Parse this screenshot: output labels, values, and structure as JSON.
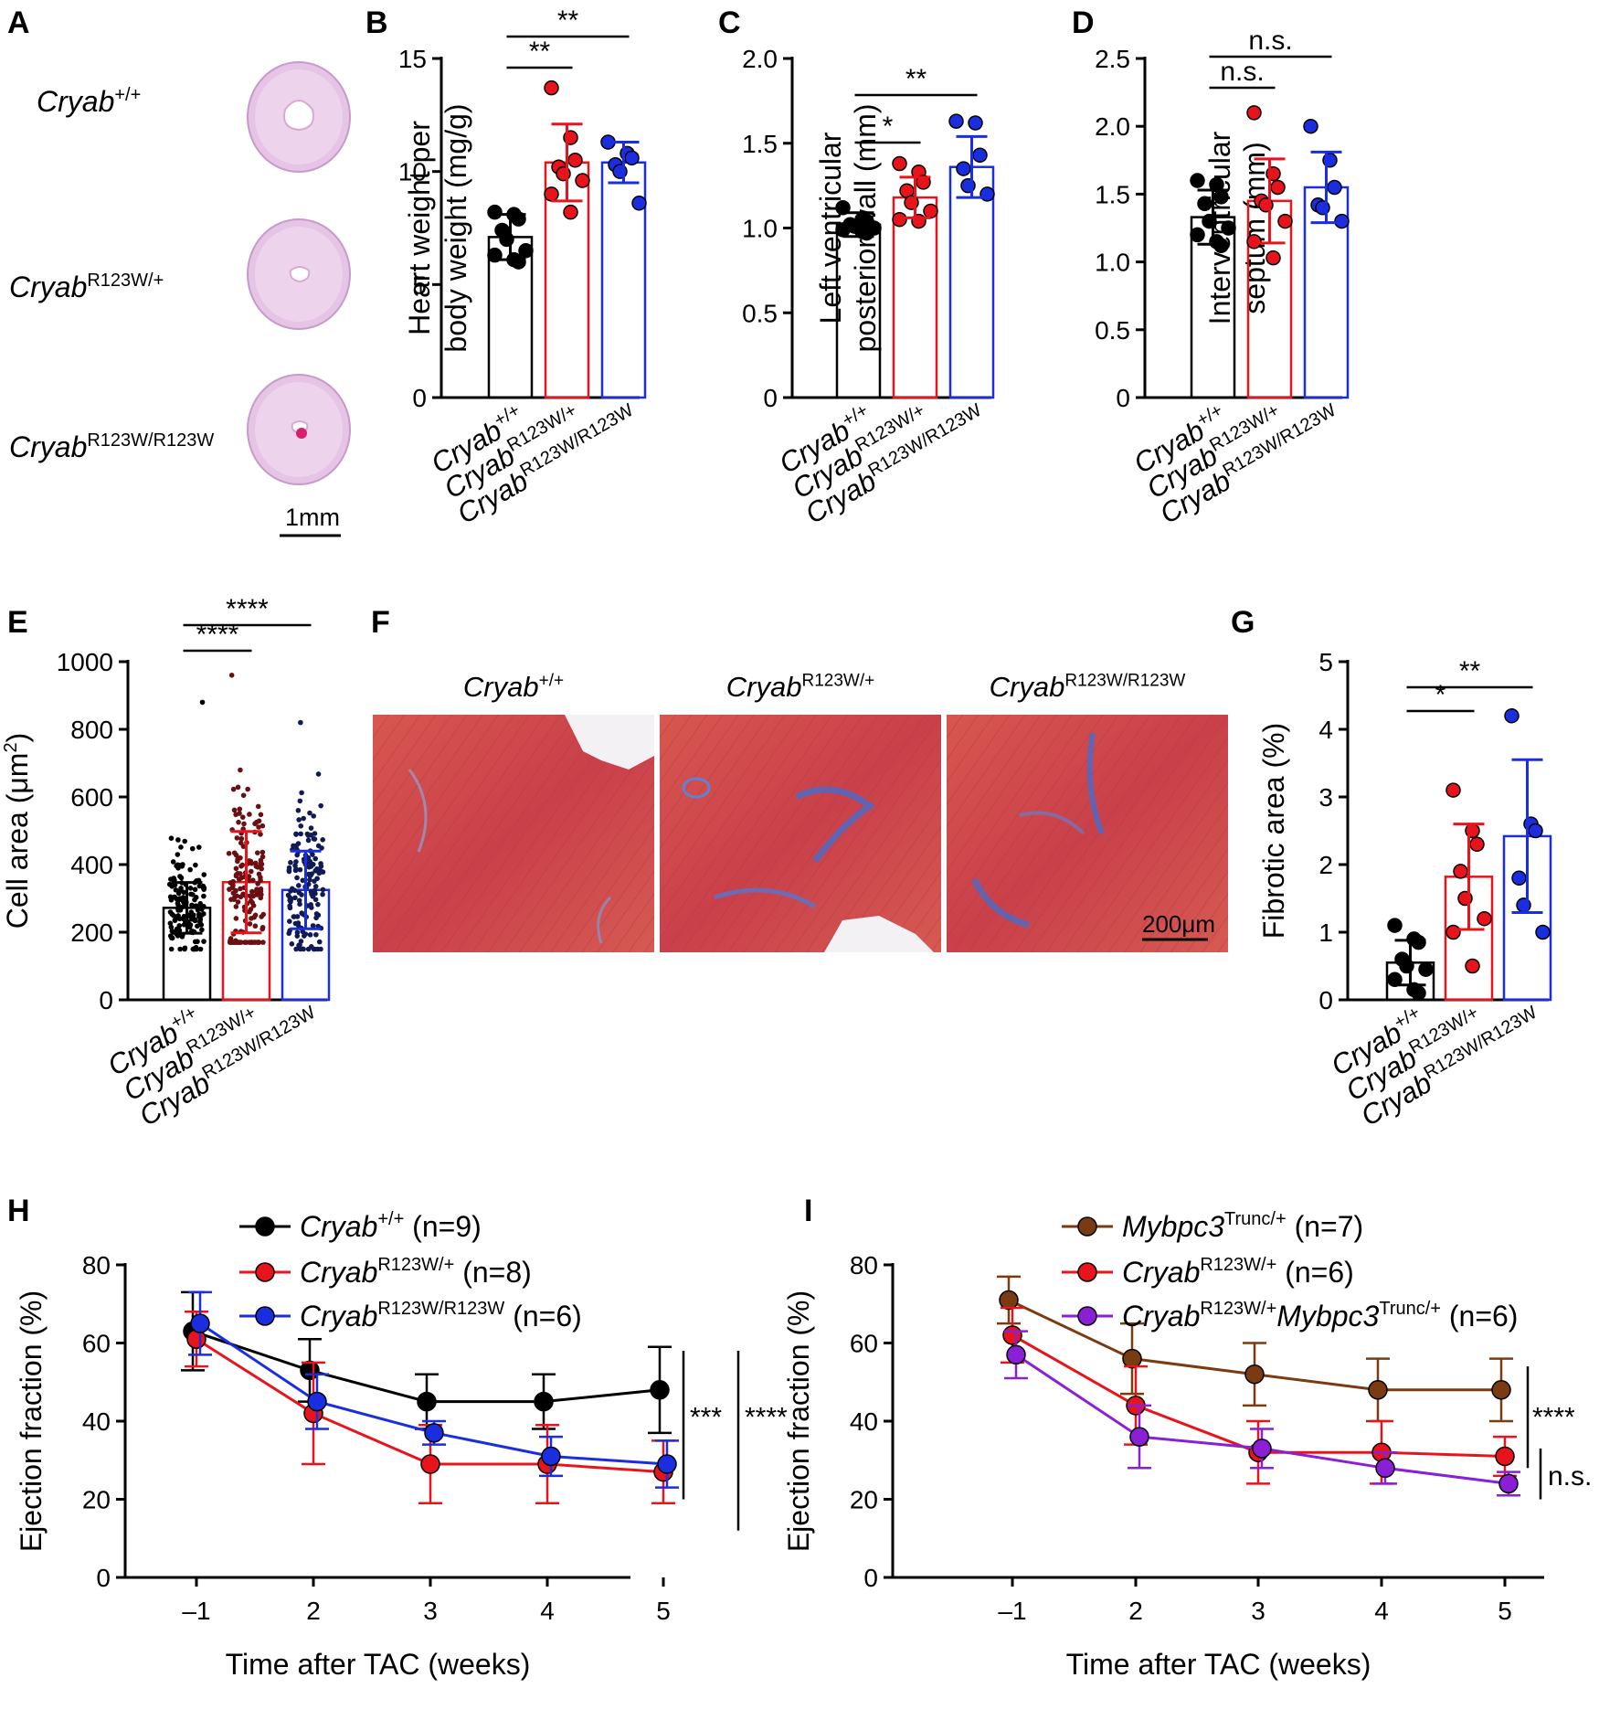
{
  "panels": {
    "A": {
      "letter": "A",
      "genotypes": [
        {
          "base": "Cryab",
          "sup": "+/+"
        },
        {
          "base": "Cryab",
          "sup": "R123W/+"
        },
        {
          "base": "Cryab",
          "sup": "R123W/R123W"
        }
      ],
      "scale_label": "1mm"
    },
    "F": {
      "letter": "F",
      "titles": [
        {
          "base": "Cryab",
          "sup": "+/+"
        },
        {
          "base": "Cryab",
          "sup": "R123W/+"
        },
        {
          "base": "Cryab",
          "sup": "R123W/R123W"
        }
      ],
      "scale_label": "200μm"
    }
  },
  "colors": {
    "wt": "#000000",
    "het": "#e8141c",
    "hom": "#1a2ee0",
    "mybpc3": "#7a3b12",
    "double": "#8b1fd6"
  },
  "chart_data": [
    {
      "id": "B",
      "letter": "B",
      "type": "bar",
      "ylabel_lines": [
        "Heart weight per",
        "body weight (mg/g)"
      ],
      "ylim": [
        0,
        15
      ],
      "yticks": [
        0,
        5,
        10,
        15
      ],
      "categories": [
        {
          "base": "Cryab",
          "sup": "+/+"
        },
        {
          "base": "Cryab",
          "sup": "R123W/+"
        },
        {
          "base": "Cryab",
          "sup": "R123W/R123W"
        }
      ],
      "means": [
        7.1,
        10.4,
        10.4
      ],
      "sd": [
        1.0,
        1.7,
        0.9
      ],
      "points": [
        [
          8.2,
          8.1,
          7.9,
          7.4,
          7.0,
          6.5,
          6.3,
          6.1,
          6.0
        ],
        [
          13.7,
          11.5,
          10.5,
          10.2,
          9.9,
          9.6,
          9.0,
          8.2
        ],
        [
          11.3,
          10.8,
          10.6,
          10.3,
          10.0,
          8.6
        ]
      ],
      "significance": [
        {
          "from": 0,
          "to": 1,
          "label": "**"
        },
        {
          "from": 0,
          "to": 2,
          "label": "**"
        }
      ]
    },
    {
      "id": "C",
      "letter": "C",
      "type": "bar",
      "ylabel_lines": [
        "Left ventricular",
        "posterior wall (mm)"
      ],
      "ylim": [
        0,
        2.0
      ],
      "yticks": [
        0,
        0.5,
        1.0,
        1.5,
        2.0
      ],
      "ytick_labels": [
        "0",
        "0.5",
        "1.0",
        "1.5",
        "2.0"
      ],
      "categories": [
        {
          "base": "Cryab",
          "sup": "+/+"
        },
        {
          "base": "Cryab",
          "sup": "R123W/+"
        },
        {
          "base": "Cryab",
          "sup": "R123W/R123W"
        }
      ],
      "means": [
        1.02,
        1.18,
        1.36
      ],
      "sd": [
        0.07,
        0.12,
        0.18
      ],
      "points": [
        [
          1.12,
          1.05,
          1.04,
          1.02,
          1.01,
          1.0,
          0.99,
          0.98,
          0.97
        ],
        [
          1.38,
          1.33,
          1.27,
          1.22,
          1.15,
          1.1,
          1.05,
          1.04
        ],
        [
          1.63,
          1.62,
          1.43,
          1.35,
          1.25,
          1.2
        ]
      ],
      "significance": [
        {
          "from": 0,
          "to": 1,
          "label": "*"
        },
        {
          "from": 0,
          "to": 2,
          "label": "**"
        }
      ]
    },
    {
      "id": "D",
      "letter": "D",
      "type": "bar",
      "ylabel_lines": [
        "Interventricular",
        "septum (mm)"
      ],
      "ylim": [
        0,
        2.5
      ],
      "yticks": [
        0,
        0.5,
        1.0,
        1.5,
        2.0,
        2.5
      ],
      "ytick_labels": [
        "0",
        "0.5",
        "1.0",
        "1.5",
        "2.0",
        "2.5"
      ],
      "categories": [
        {
          "base": "Cryab",
          "sup": "+/+"
        },
        {
          "base": "Cryab",
          "sup": "R123W/+"
        },
        {
          "base": "Cryab",
          "sup": "R123W/R123W"
        }
      ],
      "means": [
        1.33,
        1.45,
        1.55
      ],
      "sd": [
        0.2,
        0.31,
        0.26
      ],
      "points": [
        [
          1.6,
          1.57,
          1.48,
          1.43,
          1.3,
          1.25,
          1.2,
          1.15,
          1.12
        ],
        [
          2.1,
          1.65,
          1.55,
          1.45,
          1.42,
          1.3,
          1.15,
          1.03
        ],
        [
          2.0,
          1.75,
          1.55,
          1.42,
          1.4,
          1.3
        ]
      ],
      "significance": [
        {
          "from": 0,
          "to": 1,
          "label": "n.s."
        },
        {
          "from": 0,
          "to": 2,
          "label": "n.s."
        }
      ]
    },
    {
      "id": "E",
      "letter": "E",
      "type": "bar",
      "ylabel_lines": [
        "Cell area (μm²)"
      ],
      "ylim": [
        0,
        1000
      ],
      "yticks": [
        0,
        200,
        400,
        600,
        800,
        1000
      ],
      "categories": [
        {
          "base": "Cryab",
          "sup": "+/+"
        },
        {
          "base": "Cryab",
          "sup": "R123W/+"
        },
        {
          "base": "Cryab",
          "sup": "R123W/R123W"
        }
      ],
      "means": [
        272,
        348,
        325
      ],
      "sd": [
        75,
        150,
        115
      ],
      "dense_points": {
        "n": 150,
        "min": [
          150,
          170,
          150
        ],
        "max": [
          880,
          960,
          820
        ],
        "sd": [
          80,
          150,
          110
        ]
      },
      "significance": [
        {
          "from": 0,
          "to": 1,
          "label": "****"
        },
        {
          "from": 0,
          "to": 2,
          "label": "****"
        }
      ]
    },
    {
      "id": "G",
      "letter": "G",
      "type": "bar",
      "ylabel_lines": [
        "Fibrotic area (%)"
      ],
      "ylim": [
        0,
        5
      ],
      "yticks": [
        0,
        1,
        2,
        3,
        4,
        5
      ],
      "categories": [
        {
          "base": "Cryab",
          "sup": "+/+"
        },
        {
          "base": "Cryab",
          "sup": "R123W/+"
        },
        {
          "base": "Cryab",
          "sup": "R123W/R123W"
        }
      ],
      "means": [
        0.55,
        1.82,
        2.42
      ],
      "sd": [
        0.33,
        0.78,
        1.13
      ],
      "points": [
        [
          1.1,
          0.9,
          0.85,
          0.6,
          0.5,
          0.45,
          0.3,
          0.15,
          0.1
        ],
        [
          3.1,
          2.5,
          2.3,
          1.9,
          1.5,
          1.2,
          1.0,
          0.5
        ],
        [
          4.2,
          2.6,
          2.5,
          1.8,
          1.4,
          1.0
        ]
      ],
      "significance": [
        {
          "from": 0,
          "to": 1,
          "label": "*"
        },
        {
          "from": 0,
          "to": 2,
          "label": "**"
        }
      ]
    },
    {
      "id": "H",
      "letter": "H",
      "type": "line",
      "xlabel": "Time after TAC (weeks)",
      "ylabel": "Ejection fraction (%)",
      "x": [
        "–1",
        "2",
        "3",
        "4",
        "5"
      ],
      "ylim": [
        0,
        80
      ],
      "yticks": [
        0,
        20,
        40,
        60,
        80
      ],
      "series": [
        {
          "base": "Cryab",
          "sup": "+/+",
          "n": "(n=9)",
          "color": "#000000",
          "values": [
            63,
            53,
            45,
            45,
            48
          ],
          "sd": [
            10,
            8,
            7,
            7,
            11
          ]
        },
        {
          "base": "Cryab",
          "sup": "R123W/+",
          "n": "(n=8)",
          "color": "#e8141c",
          "values": [
            61,
            42,
            29,
            29,
            27
          ],
          "sd": [
            7,
            13,
            10,
            10,
            8
          ]
        },
        {
          "base": "Cryab",
          "sup": "R123W/R123W",
          "n": "(n=6)",
          "color": "#1a2ee0",
          "values": [
            65,
            45,
            37,
            31,
            29
          ],
          "sd": [
            8,
            7,
            3,
            5,
            6
          ]
        }
      ],
      "significance": [
        {
          "label": "***"
        },
        {
          "label": "****"
        }
      ]
    },
    {
      "id": "I",
      "letter": "I",
      "type": "line",
      "xlabel": "Time after TAC (weeks)",
      "ylabel": "Ejection fraction (%)",
      "x": [
        "–1",
        "2",
        "3",
        "4",
        "5"
      ],
      "ylim": [
        0,
        80
      ],
      "yticks": [
        0,
        20,
        40,
        60,
        80
      ],
      "series": [
        {
          "parts": [
            {
              "t": "Mybpc3",
              "i": true
            },
            {
              "t": "Trunc/+",
              "s": true
            },
            {
              "t": " (n=7)"
            }
          ],
          "color": "#7a3b12",
          "values": [
            71,
            56,
            52,
            48,
            48
          ],
          "sd": [
            6,
            9,
            8,
            8,
            8
          ]
        },
        {
          "parts": [
            {
              "t": "Cryab",
              "i": true
            },
            {
              "t": "R123W/+",
              "s": true
            },
            {
              "t": " (n=6)"
            }
          ],
          "color": "#e8141c",
          "values": [
            62,
            44,
            32,
            32,
            31
          ],
          "sd": [
            7,
            10,
            8,
            8,
            5
          ]
        },
        {
          "parts": [
            {
              "t": "Cryab",
              "i": true
            },
            {
              "t": "R123W/+",
              "s": true
            },
            {
              "t": "Mybpc3",
              "i": true
            },
            {
              "t": "Trunc/+",
              "s": true
            },
            {
              "t": " (n=6)"
            }
          ],
          "color": "#8b1fd6",
          "values": [
            57,
            36,
            33,
            28,
            24
          ],
          "sd": [
            6,
            8,
            5,
            4,
            3
          ]
        }
      ],
      "significance": [
        {
          "label": "****"
        },
        {
          "label": "n.s."
        }
      ]
    }
  ]
}
